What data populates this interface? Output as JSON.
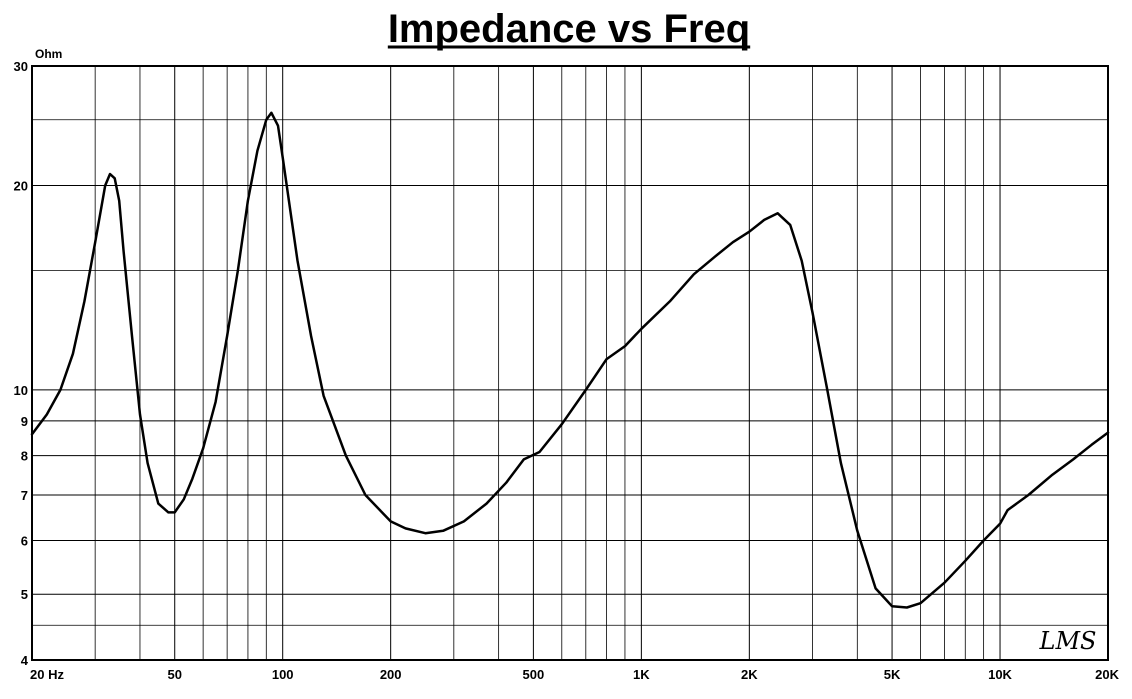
{
  "chart_data": {
    "type": "line",
    "title": "Impedance vs Freq",
    "ylabel": "Ohm",
    "x_scale": "log",
    "y_scale": "log",
    "xlim": [
      20,
      20000
    ],
    "ylim": [
      4,
      30
    ],
    "grid": true,
    "x_ticks": [
      {
        "value": 20,
        "label": "20  Hz"
      },
      {
        "value": 50,
        "label": "50"
      },
      {
        "value": 100,
        "label": "100"
      },
      {
        "value": 200,
        "label": "200"
      },
      {
        "value": 500,
        "label": "500"
      },
      {
        "value": 1000,
        "label": "1K"
      },
      {
        "value": 2000,
        "label": "2K"
      },
      {
        "value": 5000,
        "label": "5K"
      },
      {
        "value": 10000,
        "label": "10K"
      },
      {
        "value": 20000,
        "label": "20K"
      }
    ],
    "y_ticks": [
      {
        "value": 30,
        "label": "30"
      },
      {
        "value": 20,
        "label": "20"
      },
      {
        "value": 10,
        "label": "10"
      },
      {
        "value": 9,
        "label": "9"
      },
      {
        "value": 8,
        "label": "8"
      },
      {
        "value": 7,
        "label": "7"
      },
      {
        "value": 6,
        "label": "6"
      },
      {
        "value": 5,
        "label": "5"
      },
      {
        "value": 4,
        "label": "4"
      }
    ],
    "series": [
      {
        "color": "#000000",
        "points": [
          [
            20,
            8.6
          ],
          [
            22,
            9.2
          ],
          [
            24,
            10.0
          ],
          [
            26,
            11.3
          ],
          [
            28,
            13.5
          ],
          [
            30,
            16.5
          ],
          [
            32,
            20.0
          ],
          [
            33,
            20.8
          ],
          [
            34,
            20.5
          ],
          [
            35,
            19.0
          ],
          [
            36,
            16.0
          ],
          [
            38,
            12.0
          ],
          [
            40,
            9.2
          ],
          [
            42,
            7.8
          ],
          [
            45,
            6.8
          ],
          [
            48,
            6.6
          ],
          [
            50,
            6.6
          ],
          [
            53,
            6.9
          ],
          [
            56,
            7.4
          ],
          [
            60,
            8.2
          ],
          [
            65,
            9.6
          ],
          [
            70,
            12.0
          ],
          [
            75,
            15.0
          ],
          [
            80,
            19.0
          ],
          [
            85,
            22.5
          ],
          [
            90,
            25.0
          ],
          [
            93,
            25.6
          ],
          [
            97,
            24.5
          ],
          [
            100,
            22.0
          ],
          [
            110,
            15.5
          ],
          [
            120,
            12.0
          ],
          [
            130,
            9.8
          ],
          [
            150,
            8.0
          ],
          [
            170,
            7.0
          ],
          [
            200,
            6.4
          ],
          [
            220,
            6.25
          ],
          [
            250,
            6.15
          ],
          [
            280,
            6.2
          ],
          [
            320,
            6.4
          ],
          [
            370,
            6.8
          ],
          [
            420,
            7.3
          ],
          [
            470,
            7.9
          ],
          [
            520,
            8.1
          ],
          [
            600,
            8.9
          ],
          [
            700,
            10.0
          ],
          [
            800,
            11.1
          ],
          [
            900,
            11.6
          ],
          [
            1000,
            12.3
          ],
          [
            1200,
            13.5
          ],
          [
            1400,
            14.8
          ],
          [
            1600,
            15.7
          ],
          [
            1800,
            16.5
          ],
          [
            2000,
            17.1
          ],
          [
            2200,
            17.8
          ],
          [
            2400,
            18.2
          ],
          [
            2600,
            17.5
          ],
          [
            2800,
            15.5
          ],
          [
            3000,
            13.0
          ],
          [
            3300,
            10.0
          ],
          [
            3600,
            7.8
          ],
          [
            4000,
            6.2
          ],
          [
            4500,
            5.1
          ],
          [
            5000,
            4.8
          ],
          [
            5500,
            4.78
          ],
          [
            6000,
            4.85
          ],
          [
            7000,
            5.2
          ],
          [
            8000,
            5.6
          ],
          [
            9000,
            6.0
          ],
          [
            10000,
            6.35
          ],
          [
            10500,
            6.65
          ],
          [
            12000,
            7.0
          ],
          [
            14000,
            7.5
          ],
          [
            16000,
            7.9
          ],
          [
            18000,
            8.3
          ],
          [
            20000,
            8.65
          ]
        ]
      }
    ]
  },
  "watermark": "LMS"
}
